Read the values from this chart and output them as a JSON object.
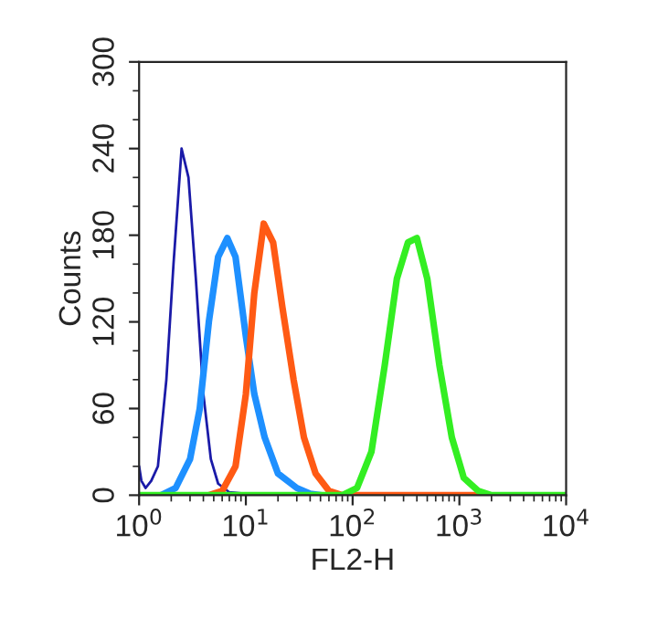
{
  "chart_data": {
    "type": "line",
    "xlabel": "FL2-H",
    "ylabel": "Counts",
    "log": "x",
    "xlim": [
      1,
      10000
    ],
    "xticks": [
      {
        "value": 1,
        "label": "10$^{0}$"
      },
      {
        "value": 10,
        "label": "10$^{1}$"
      },
      {
        "value": 100,
        "label": "10$^{2}$"
      },
      {
        "value": 1000,
        "label": "10$^{3}$"
      },
      {
        "value": 10000,
        "label": "10$^{4}$"
      }
    ],
    "ylim": [
      0,
      300
    ],
    "yticks": [
      0,
      60,
      120,
      180,
      240,
      300
    ],
    "grid": false,
    "legend": false,
    "marker": "none",
    "line_style": "solid",
    "series": [
      {
        "color": "#1a1aa8",
        "x": [
          1.0,
          1.05,
          1.15,
          1.3,
          1.5,
          1.8,
          2.1,
          2.5,
          2.9,
          3.4,
          4.0,
          4.7,
          5.5,
          7,
          10,
          15
        ],
        "values": [
          20,
          10,
          5,
          10,
          20,
          80,
          160,
          240,
          220,
          150,
          70,
          25,
          8,
          2,
          1,
          0
        ]
      },
      {
        "color": "#1e90ff",
        "x": [
          1.6,
          2.2,
          3,
          3.7,
          4.5,
          5.5,
          6.7,
          8,
          10,
          12,
          15,
          20,
          30,
          40,
          50
        ],
        "values": [
          0,
          5,
          25,
          60,
          120,
          165,
          178,
          165,
          110,
          70,
          40,
          15,
          5,
          1,
          0
        ]
      },
      {
        "color": "#ff5a14",
        "x": [
          4.5,
          6,
          8,
          10,
          12,
          14.7,
          18,
          22,
          28,
          35,
          45,
          60,
          80,
          1500
        ],
        "values": [
          0,
          3,
          20,
          70,
          140,
          188,
          175,
          130,
          80,
          40,
          15,
          3,
          0,
          0
        ]
      },
      {
        "color": "#33ee22",
        "x": [
          1,
          80,
          110,
          150,
          200,
          260,
          330,
          400,
          500,
          650,
          850,
          1100,
          1500,
          2000,
          10000
        ],
        "values": [
          0,
          0,
          5,
          30,
          90,
          150,
          175,
          178,
          150,
          90,
          40,
          12,
          3,
          0,
          0
        ]
      }
    ]
  }
}
